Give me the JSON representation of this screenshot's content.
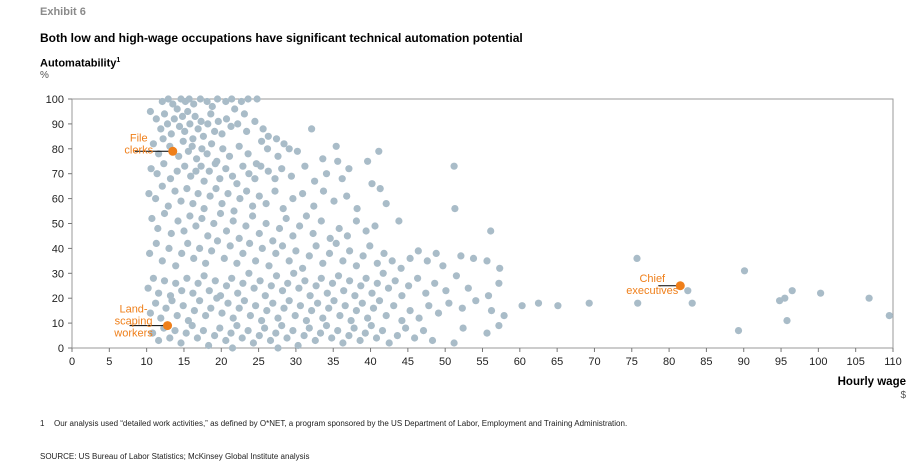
{
  "exhibit": "Exhibit 6",
  "title": "Both low and high-wage occupations have significant technical automation potential",
  "chart_data": {
    "type": "scatter",
    "ylabel": "Automatability",
    "ylabel_superscript": "1",
    "yunit": "%",
    "xlabel": "Hourly wage",
    "xunit": "$",
    "xlim": [
      0,
      110
    ],
    "ylim": [
      0,
      100
    ],
    "xticks": [
      0,
      5,
      10,
      15,
      20,
      25,
      30,
      35,
      40,
      45,
      50,
      55,
      60,
      65,
      70,
      75,
      80,
      85,
      90,
      95,
      100,
      105,
      110
    ],
    "yticks": [
      0,
      10,
      20,
      30,
      40,
      50,
      60,
      70,
      80,
      90,
      100
    ],
    "colors": {
      "points": "#a9bcc8",
      "highlight": "#ef7f1a",
      "label": "#ef7f1a"
    },
    "highlighted": [
      {
        "name": "File clerks",
        "lines": [
          "File",
          "clerks"
        ],
        "x": 13.5,
        "y": 79
      },
      {
        "name": "Landscaping workers",
        "lines": [
          "Land-",
          "scaping",
          "workers"
        ],
        "x": 12.8,
        "y": 9
      },
      {
        "name": "Chief executives",
        "lines": [
          "Chief",
          "executives"
        ],
        "x": 81.5,
        "y": 25
      }
    ],
    "points": [
      [
        12.1,
        99
      ],
      [
        12.9,
        100
      ],
      [
        13.5,
        98
      ],
      [
        14.6,
        100
      ],
      [
        15.2,
        99
      ],
      [
        15.7,
        100
      ],
      [
        16.3,
        98
      ],
      [
        17.2,
        100
      ],
      [
        18.1,
        99
      ],
      [
        18.8,
        97
      ],
      [
        19.5,
        100
      ],
      [
        20.6,
        99
      ],
      [
        21.4,
        100
      ],
      [
        22.7,
        99
      ],
      [
        23.6,
        100
      ],
      [
        24.8,
        100
      ],
      [
        21.8,
        96
      ],
      [
        23.1,
        94
      ],
      [
        10.5,
        95
      ],
      [
        11.3,
        92
      ],
      [
        11.9,
        88
      ],
      [
        12.4,
        94
      ],
      [
        12.8,
        90
      ],
      [
        13.3,
        86
      ],
      [
        13.7,
        92
      ],
      [
        14.1,
        96
      ],
      [
        14.4,
        89
      ],
      [
        14.8,
        93
      ],
      [
        15.1,
        87
      ],
      [
        15.5,
        95
      ],
      [
        15.8,
        90
      ],
      [
        16.2,
        84
      ],
      [
        16.5,
        93
      ],
      [
        16.9,
        88
      ],
      [
        17.3,
        91
      ],
      [
        17.6,
        85
      ],
      [
        18.2,
        90
      ],
      [
        18.6,
        94
      ],
      [
        19.1,
        87
      ],
      [
        19.6,
        91
      ],
      [
        20.1,
        86
      ],
      [
        20.7,
        92
      ],
      [
        21.3,
        89
      ],
      [
        22.2,
        90
      ],
      [
        23.4,
        87
      ],
      [
        24.5,
        91
      ],
      [
        25.6,
        88
      ],
      [
        26.3,
        85
      ],
      [
        27.4,
        84
      ],
      [
        29.1,
        80
      ],
      [
        32.1,
        88
      ],
      [
        10.9,
        82
      ],
      [
        11.6,
        78
      ],
      [
        12.2,
        84
      ],
      [
        13.1,
        81
      ],
      [
        14.3,
        77
      ],
      [
        14.9,
        83
      ],
      [
        15.6,
        79
      ],
      [
        16.1,
        81
      ],
      [
        16.7,
        76
      ],
      [
        17.4,
        80
      ],
      [
        18.1,
        78
      ],
      [
        18.7,
        82
      ],
      [
        19.4,
        75
      ],
      [
        20.2,
        80
      ],
      [
        21.1,
        77
      ],
      [
        22.4,
        81
      ],
      [
        23.6,
        78
      ],
      [
        24.7,
        74
      ],
      [
        25.4,
        83
      ],
      [
        26.2,
        80
      ],
      [
        27.6,
        77
      ],
      [
        28.4,
        82
      ],
      [
        30.2,
        79
      ],
      [
        33.6,
        76
      ],
      [
        35.4,
        81
      ],
      [
        37.1,
        72
      ],
      [
        39.6,
        75
      ],
      [
        41.1,
        79
      ],
      [
        10.6,
        72
      ],
      [
        11.4,
        70
      ],
      [
        12.3,
        74
      ],
      [
        13.2,
        68
      ],
      [
        14.1,
        71
      ],
      [
        15.1,
        73
      ],
      [
        15.9,
        69
      ],
      [
        16.6,
        71
      ],
      [
        17.3,
        73
      ],
      [
        17.7,
        67
      ],
      [
        18.4,
        71
      ],
      [
        19.2,
        74
      ],
      [
        19.8,
        68
      ],
      [
        20.6,
        72
      ],
      [
        21.5,
        69
      ],
      [
        22.1,
        66
      ],
      [
        22.9,
        73
      ],
      [
        23.7,
        70
      ],
      [
        24.5,
        68
      ],
      [
        25.3,
        73
      ],
      [
        26.3,
        71
      ],
      [
        27.2,
        68
      ],
      [
        28.1,
        72
      ],
      [
        29.4,
        69
      ],
      [
        31.2,
        73
      ],
      [
        32.5,
        67
      ],
      [
        34.1,
        70
      ],
      [
        35.6,
        75
      ],
      [
        36.2,
        68
      ],
      [
        51.2,
        73
      ],
      [
        10.3,
        62
      ],
      [
        11.2,
        60
      ],
      [
        12.1,
        65
      ],
      [
        12.9,
        57
      ],
      [
        13.8,
        63
      ],
      [
        14.6,
        59
      ],
      [
        15.4,
        64
      ],
      [
        16.2,
        58
      ],
      [
        16.9,
        62
      ],
      [
        17.7,
        56
      ],
      [
        18.5,
        61
      ],
      [
        19.3,
        64
      ],
      [
        20.1,
        58
      ],
      [
        20.9,
        62
      ],
      [
        21.7,
        55
      ],
      [
        22.5,
        60
      ],
      [
        23.4,
        63
      ],
      [
        24.2,
        57
      ],
      [
        25.1,
        61
      ],
      [
        26.0,
        58
      ],
      [
        27.2,
        63
      ],
      [
        28.3,
        56
      ],
      [
        29.6,
        60
      ],
      [
        30.9,
        62
      ],
      [
        32.4,
        57
      ],
      [
        33.7,
        63
      ],
      [
        35.1,
        59
      ],
      [
        36.8,
        61
      ],
      [
        38.2,
        56
      ],
      [
        40.2,
        66
      ],
      [
        41.3,
        64
      ],
      [
        42.1,
        58
      ],
      [
        51.3,
        56
      ],
      [
        10.7,
        52
      ],
      [
        11.5,
        48
      ],
      [
        12.4,
        54
      ],
      [
        13.3,
        46
      ],
      [
        14.2,
        51
      ],
      [
        15.0,
        47
      ],
      [
        15.8,
        53
      ],
      [
        16.6,
        49
      ],
      [
        17.4,
        52
      ],
      [
        18.2,
        45
      ],
      [
        19.0,
        50
      ],
      [
        19.9,
        54
      ],
      [
        20.7,
        47
      ],
      [
        21.6,
        51
      ],
      [
        22.4,
        44
      ],
      [
        23.3,
        49
      ],
      [
        24.2,
        53
      ],
      [
        25.1,
        46
      ],
      [
        26.0,
        50
      ],
      [
        26.9,
        43
      ],
      [
        27.8,
        48
      ],
      [
        28.7,
        52
      ],
      [
        29.6,
        45
      ],
      [
        30.5,
        49
      ],
      [
        31.4,
        53
      ],
      [
        32.3,
        46
      ],
      [
        33.4,
        51
      ],
      [
        34.6,
        44
      ],
      [
        35.8,
        48
      ],
      [
        36.9,
        45
      ],
      [
        38.1,
        51
      ],
      [
        39.4,
        47
      ],
      [
        40.6,
        49
      ],
      [
        43.8,
        51
      ],
      [
        56.1,
        47
      ],
      [
        10.4,
        38
      ],
      [
        11.3,
        42
      ],
      [
        12.1,
        35
      ],
      [
        13.0,
        40
      ],
      [
        13.9,
        33
      ],
      [
        14.7,
        38
      ],
      [
        15.5,
        42
      ],
      [
        16.3,
        36
      ],
      [
        17.1,
        40
      ],
      [
        17.9,
        34
      ],
      [
        18.7,
        39
      ],
      [
        19.5,
        43
      ],
      [
        20.4,
        36
      ],
      [
        21.2,
        41
      ],
      [
        22.1,
        34
      ],
      [
        22.9,
        38
      ],
      [
        23.8,
        42
      ],
      [
        24.6,
        35
      ],
      [
        25.5,
        40
      ],
      [
        26.4,
        33
      ],
      [
        27.3,
        38
      ],
      [
        28.2,
        41
      ],
      [
        29.1,
        35
      ],
      [
        30.0,
        39
      ],
      [
        30.9,
        32
      ],
      [
        31.8,
        37
      ],
      [
        32.7,
        41
      ],
      [
        33.6,
        34
      ],
      [
        34.5,
        38
      ],
      [
        35.4,
        42
      ],
      [
        36.3,
        35
      ],
      [
        37.2,
        39
      ],
      [
        38.1,
        33
      ],
      [
        39.0,
        37
      ],
      [
        39.9,
        41
      ],
      [
        40.9,
        34
      ],
      [
        41.8,
        38
      ],
      [
        42.9,
        35
      ],
      [
        44.1,
        32
      ],
      [
        45.3,
        36
      ],
      [
        46.4,
        39
      ],
      [
        47.6,
        35
      ],
      [
        48.8,
        38
      ],
      [
        49.7,
        33
      ],
      [
        52.1,
        37
      ],
      [
        53.8,
        36
      ],
      [
        55.6,
        35
      ],
      [
        57.3,
        32
      ],
      [
        75.7,
        36
      ],
      [
        10.2,
        24
      ],
      [
        10.9,
        28
      ],
      [
        11.6,
        22
      ],
      [
        12.4,
        27
      ],
      [
        13.2,
        21
      ],
      [
        13.9,
        26
      ],
      [
        14.7,
        23
      ],
      [
        15.4,
        28
      ],
      [
        16.2,
        22
      ],
      [
        16.9,
        26
      ],
      [
        17.7,
        29
      ],
      [
        18.4,
        23
      ],
      [
        19.2,
        27
      ],
      [
        19.9,
        21
      ],
      [
        20.7,
        25
      ],
      [
        21.4,
        28
      ],
      [
        22.2,
        22
      ],
      [
        22.9,
        26
      ],
      [
        23.7,
        30
      ],
      [
        24.4,
        24
      ],
      [
        25.2,
        27
      ],
      [
        25.9,
        21
      ],
      [
        26.7,
        25
      ],
      [
        27.4,
        29
      ],
      [
        28.2,
        23
      ],
      [
        28.9,
        26
      ],
      [
        29.7,
        30
      ],
      [
        30.4,
        24
      ],
      [
        31.2,
        27
      ],
      [
        31.9,
        21
      ],
      [
        32.7,
        25
      ],
      [
        33.4,
        28
      ],
      [
        34.2,
        22
      ],
      [
        34.9,
        26
      ],
      [
        35.7,
        29
      ],
      [
        36.4,
        23
      ],
      [
        37.2,
        27
      ],
      [
        37.9,
        21
      ],
      [
        38.7,
        25
      ],
      [
        39.4,
        28
      ],
      [
        40.2,
        22
      ],
      [
        40.9,
        26
      ],
      [
        41.7,
        30
      ],
      [
        42.4,
        24
      ],
      [
        43.3,
        27
      ],
      [
        44.2,
        21
      ],
      [
        45.1,
        25
      ],
      [
        46.3,
        28
      ],
      [
        47.4,
        22
      ],
      [
        48.6,
        26
      ],
      [
        50.1,
        23
      ],
      [
        51.5,
        29
      ],
      [
        53.1,
        24
      ],
      [
        55.8,
        21
      ],
      [
        57.2,
        26
      ],
      [
        90.1,
        31
      ],
      [
        10.5,
        14
      ],
      [
        11.2,
        18
      ],
      [
        11.9,
        12
      ],
      [
        12.6,
        16
      ],
      [
        13.4,
        19
      ],
      [
        14.1,
        13
      ],
      [
        14.9,
        17
      ],
      [
        15.6,
        11
      ],
      [
        16.4,
        15
      ],
      [
        17.1,
        19
      ],
      [
        17.9,
        13
      ],
      [
        18.6,
        16
      ],
      [
        19.4,
        20
      ],
      [
        20.1,
        14
      ],
      [
        20.9,
        18
      ],
      [
        21.6,
        12
      ],
      [
        22.4,
        16
      ],
      [
        23.1,
        19
      ],
      [
        23.9,
        13
      ],
      [
        24.6,
        17
      ],
      [
        25.4,
        11
      ],
      [
        26.1,
        15
      ],
      [
        26.9,
        18
      ],
      [
        27.6,
        12
      ],
      [
        28.4,
        16
      ],
      [
        29.1,
        19
      ],
      [
        29.9,
        13
      ],
      [
        30.6,
        17
      ],
      [
        31.4,
        11
      ],
      [
        32.1,
        15
      ],
      [
        32.9,
        18
      ],
      [
        33.6,
        12
      ],
      [
        34.4,
        16
      ],
      [
        35.1,
        19
      ],
      [
        35.9,
        13
      ],
      [
        36.6,
        17
      ],
      [
        37.4,
        11
      ],
      [
        38.1,
        15
      ],
      [
        38.9,
        18
      ],
      [
        39.6,
        12
      ],
      [
        40.4,
        16
      ],
      [
        41.2,
        19
      ],
      [
        42.1,
        13
      ],
      [
        43.1,
        17
      ],
      [
        44.2,
        11
      ],
      [
        45.3,
        15
      ],
      [
        46.5,
        12
      ],
      [
        47.8,
        17
      ],
      [
        49.1,
        14
      ],
      [
        50.5,
        18
      ],
      [
        52.3,
        16
      ],
      [
        54.1,
        19
      ],
      [
        56.2,
        15
      ],
      [
        57.9,
        13
      ],
      [
        60.3,
        17
      ],
      [
        62.5,
        18
      ],
      [
        65.1,
        17
      ],
      [
        69.3,
        18
      ],
      [
        75.8,
        18
      ],
      [
        82.5,
        23
      ],
      [
        83.1,
        18
      ],
      [
        96.5,
        23
      ],
      [
        94.8,
        19
      ],
      [
        95.5,
        20
      ],
      [
        100.3,
        22
      ],
      [
        106.8,
        20
      ],
      [
        10.8,
        6
      ],
      [
        11.6,
        3
      ],
      [
        12.3,
        8
      ],
      [
        13.1,
        4
      ],
      [
        13.8,
        7
      ],
      [
        14.6,
        2
      ],
      [
        15.3,
        6
      ],
      [
        16.1,
        9
      ],
      [
        16.8,
        4
      ],
      [
        17.6,
        7
      ],
      [
        18.3,
        1
      ],
      [
        19.1,
        5
      ],
      [
        19.8,
        8
      ],
      [
        20.6,
        3
      ],
      [
        21.3,
        6
      ],
      [
        22.1,
        9
      ],
      [
        22.8,
        4
      ],
      [
        23.6,
        7
      ],
      [
        24.3,
        2
      ],
      [
        25.1,
        5
      ],
      [
        25.8,
        8
      ],
      [
        26.6,
        3
      ],
      [
        27.3,
        6
      ],
      [
        28.1,
        9
      ],
      [
        28.8,
        4
      ],
      [
        29.6,
        7
      ],
      [
        30.3,
        1
      ],
      [
        31.1,
        5
      ],
      [
        31.8,
        8
      ],
      [
        32.6,
        3
      ],
      [
        33.3,
        6
      ],
      [
        34.1,
        9
      ],
      [
        34.8,
        4
      ],
      [
        35.6,
        7
      ],
      [
        36.3,
        2
      ],
      [
        37.1,
        5
      ],
      [
        37.8,
        8
      ],
      [
        38.6,
        3
      ],
      [
        39.3,
        6
      ],
      [
        40.1,
        9
      ],
      [
        40.8,
        4
      ],
      [
        41.6,
        7
      ],
      [
        42.5,
        2
      ],
      [
        43.6,
        5
      ],
      [
        44.7,
        8
      ],
      [
        45.9,
        4
      ],
      [
        47.1,
        7
      ],
      [
        48.3,
        3
      ],
      [
        51.2,
        2
      ],
      [
        52.4,
        8
      ],
      [
        55.6,
        6
      ],
      [
        57.2,
        9
      ],
      [
        89.3,
        7
      ],
      [
        95.8,
        11
      ],
      [
        109.5,
        13
      ],
      [
        21.5,
        0
      ],
      [
        27.6,
        0
      ]
    ]
  },
  "footnote": {
    "number": "1",
    "text": "Our analysis used “detailed work activities,” as defined by O*NET, a program sponsored by the US Department of Labor, Employment and Training Administration."
  },
  "source": "SOURCE: US Bureau of Labor Statistics; McKinsey Global Institute analysis"
}
